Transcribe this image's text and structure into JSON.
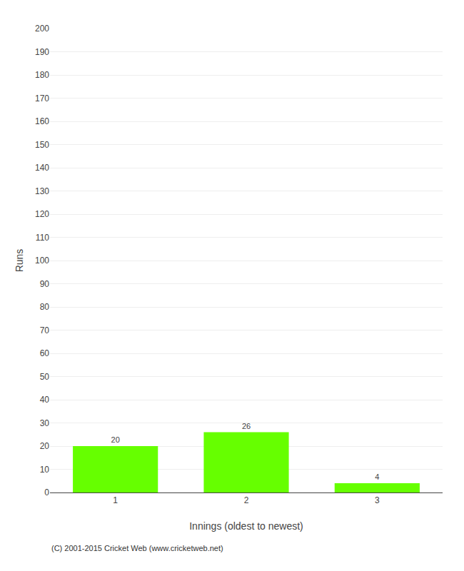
{
  "chart_data": {
    "type": "bar",
    "categories": [
      "1",
      "2",
      "3"
    ],
    "values": [
      20,
      26,
      4
    ],
    "color": "#66ff00",
    "xlabel": "Innings (oldest to newest)",
    "ylabel": "Runs",
    "ylim": [
      0,
      200
    ],
    "yticks": [
      0,
      10,
      20,
      30,
      40,
      50,
      60,
      70,
      80,
      90,
      100,
      110,
      120,
      130,
      140,
      150,
      160,
      170,
      180,
      190,
      200
    ],
    "grid": true,
    "data_labels": true,
    "annotations": [
      "(C) 2001-2015 Cricket Web (www.cricketweb.net)"
    ]
  }
}
